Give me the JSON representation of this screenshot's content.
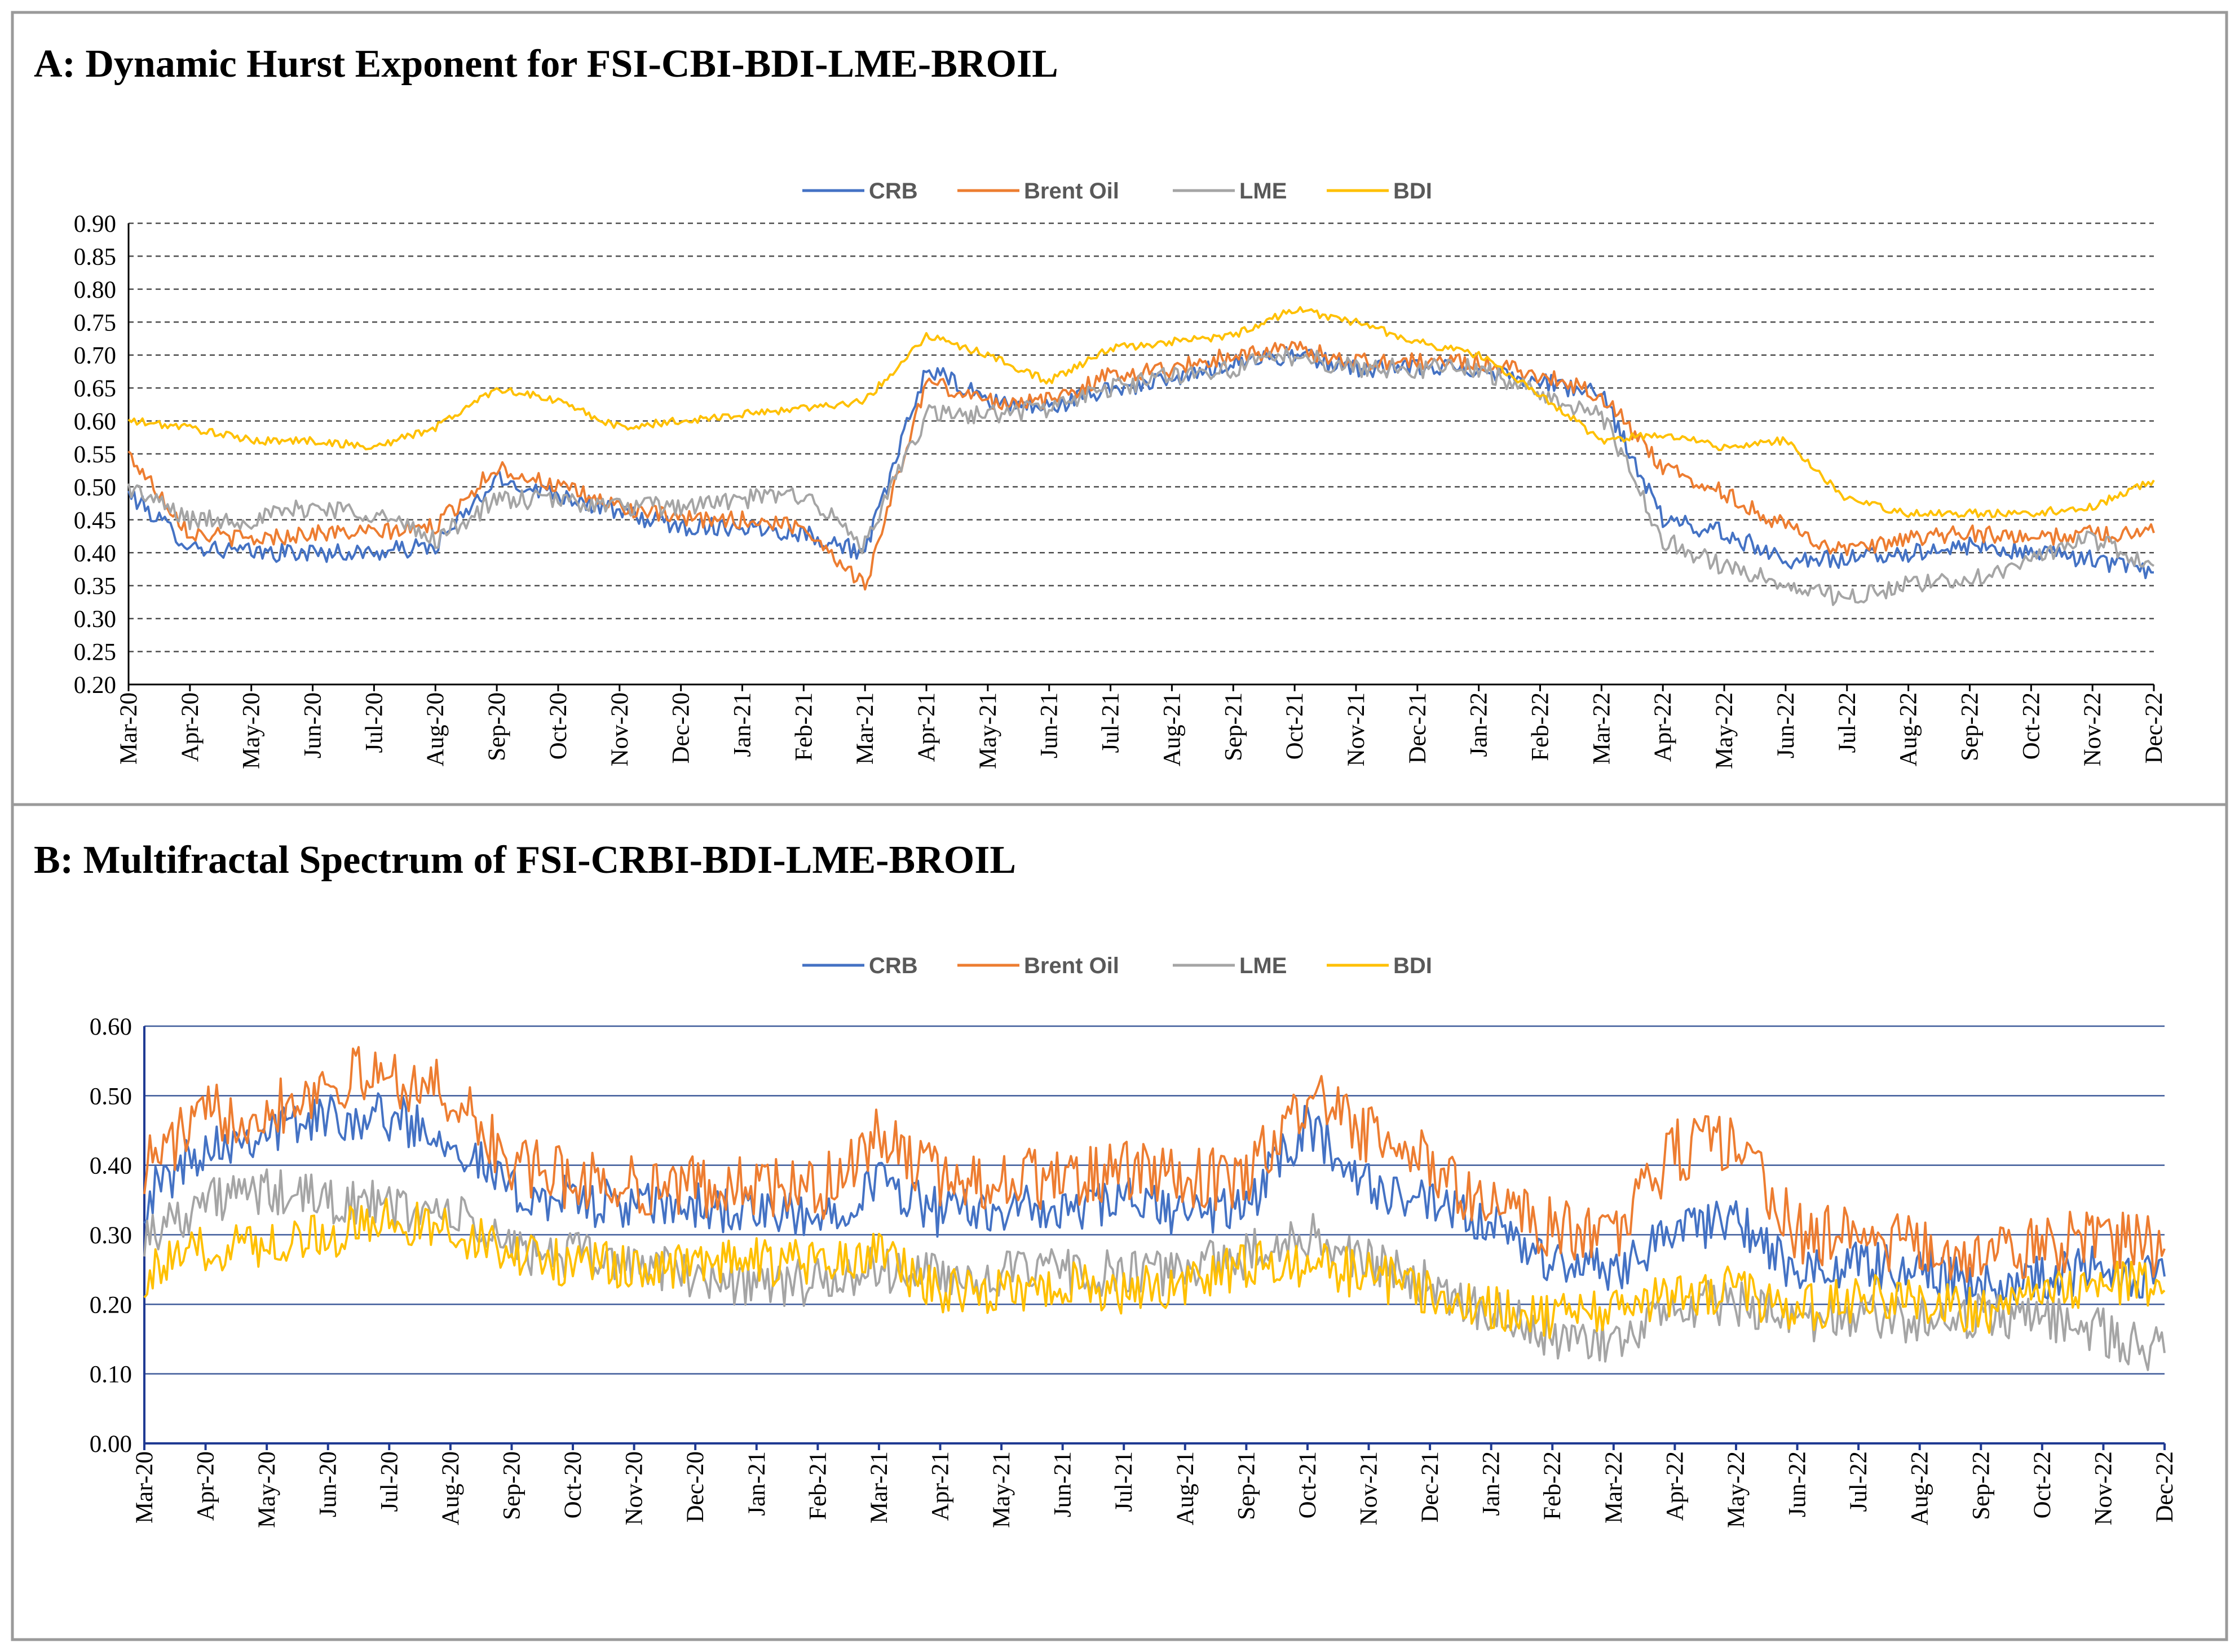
{
  "chart_data": [
    {
      "panel": "A",
      "type": "line",
      "title": "A: Dynamic Hurst Exponent for FSI-CBI-BDI-LME-BROIL",
      "xlabel": "",
      "ylabel": "",
      "ylim": [
        0.2,
        0.9
      ],
      "yticks": [
        "0.90",
        "0.85",
        "0.80",
        "0.75",
        "0.70",
        "0.65",
        "0.60",
        "0.55",
        "0.50",
        "0.45",
        "0.40",
        "0.35",
        "0.30",
        "0.25",
        "0.20"
      ],
      "grid": "dashed",
      "legend_position": "top-center",
      "categories": [
        "Mar-20",
        "Apr-20",
        "May-20",
        "Jun-20",
        "Jul-20",
        "Aug-20",
        "Sep-20",
        "Oct-20",
        "Nov-20",
        "Dec-20",
        "Jan-21",
        "Feb-21",
        "Mar-21",
        "Apr-21",
        "May-21",
        "Jun-21",
        "Jul-21",
        "Aug-21",
        "Sep-21",
        "Oct-21",
        "Nov-21",
        "Dec-21",
        "Jan-22",
        "Feb-22",
        "Mar-22",
        "Apr-22",
        "May-22",
        "Jun-22",
        "Jul-22",
        "Aug-22",
        "Sep-22",
        "Oct-22",
        "Nov-22",
        "Dec-22"
      ],
      "series": [
        {
          "name": "CRB",
          "color": "#4472c4",
          "values": [
            0.49,
            0.41,
            0.4,
            0.4,
            0.4,
            0.41,
            0.51,
            0.49,
            0.46,
            0.44,
            0.44,
            0.43,
            0.4,
            0.68,
            0.63,
            0.62,
            0.65,
            0.66,
            0.69,
            0.7,
            0.68,
            0.68,
            0.68,
            0.66,
            0.64,
            0.45,
            0.43,
            0.39,
            0.39,
            0.4,
            0.41,
            0.4,
            0.39,
            0.37
          ],
          "noise": 0.014
        },
        {
          "name": "Brent Oil",
          "color": "#ed7d31",
          "values": [
            0.55,
            0.43,
            0.42,
            0.43,
            0.43,
            0.44,
            0.53,
            0.5,
            0.47,
            0.45,
            0.45,
            0.44,
            0.35,
            0.66,
            0.63,
            0.63,
            0.67,
            0.68,
            0.7,
            0.71,
            0.69,
            0.69,
            0.69,
            0.67,
            0.64,
            0.53,
            0.49,
            0.44,
            0.4,
            0.42,
            0.43,
            0.42,
            0.43,
            0.43
          ],
          "noise": 0.013
        },
        {
          "name": "LME",
          "color": "#a5a5a5",
          "values": [
            0.5,
            0.45,
            0.45,
            0.47,
            0.46,
            0.42,
            0.48,
            0.48,
            0.47,
            0.47,
            0.48,
            0.49,
            0.41,
            0.61,
            0.61,
            0.62,
            0.65,
            0.67,
            0.68,
            0.7,
            0.68,
            0.68,
            0.68,
            0.64,
            0.61,
            0.42,
            0.38,
            0.35,
            0.33,
            0.35,
            0.36,
            0.39,
            0.42,
            0.38
          ],
          "noise": 0.015
        },
        {
          "name": "BDI",
          "color": "#ffc000",
          "values": [
            0.6,
            0.59,
            0.57,
            0.57,
            0.56,
            0.59,
            0.65,
            0.63,
            0.59,
            0.6,
            0.61,
            0.62,
            0.63,
            0.73,
            0.7,
            0.66,
            0.71,
            0.72,
            0.73,
            0.77,
            0.75,
            0.72,
            0.7,
            0.64,
            0.57,
            0.58,
            0.56,
            0.57,
            0.48,
            0.46,
            0.46,
            0.46,
            0.47,
            0.51
          ],
          "noise": 0.006
        }
      ]
    },
    {
      "panel": "B",
      "type": "line",
      "title": "B: Multifractal Spectrum of FSI-CRBI-BDI-LME-BROIL",
      "xlabel": "",
      "ylabel": "",
      "ylim": [
        0.0,
        0.6
      ],
      "yticks": [
        "0.60",
        "0.50",
        "0.40",
        "0.30",
        "0.20",
        "0.10",
        "0.00"
      ],
      "grid": "solid",
      "legend_position": "top-center",
      "categories": [
        "Mar-20",
        "Apr-20",
        "May-20",
        "Jun-20",
        "Jul-20",
        "Aug-20",
        "Sep-20",
        "Oct-20",
        "Nov-20",
        "Dec-20",
        "Jan-21",
        "Feb-21",
        "Mar-21",
        "Apr-21",
        "May-21",
        "Jun-21",
        "Jul-21",
        "Aug-21",
        "Sep-21",
        "Oct-21",
        "Nov-21",
        "Dec-21",
        "Jan-22",
        "Feb-22",
        "Mar-22",
        "Apr-22",
        "May-22",
        "Jun-22",
        "Jul-22",
        "Aug-22",
        "Sep-22",
        "Oct-22",
        "Nov-22",
        "Dec-22"
      ],
      "series": [
        {
          "name": "CRB",
          "color": "#4472c4",
          "values": [
            0.35,
            0.43,
            0.45,
            0.47,
            0.47,
            0.44,
            0.36,
            0.35,
            0.34,
            0.34,
            0.33,
            0.32,
            0.38,
            0.33,
            0.34,
            0.33,
            0.35,
            0.33,
            0.34,
            0.46,
            0.37,
            0.34,
            0.31,
            0.26,
            0.25,
            0.31,
            0.32,
            0.24,
            0.26,
            0.25,
            0.23,
            0.24,
            0.25,
            0.24
          ],
          "noise": 0.035
        },
        {
          "name": "Brent Oil",
          "color": "#ed7d31",
          "values": [
            0.4,
            0.47,
            0.48,
            0.52,
            0.53,
            0.5,
            0.4,
            0.38,
            0.37,
            0.37,
            0.37,
            0.36,
            0.44,
            0.38,
            0.38,
            0.38,
            0.39,
            0.38,
            0.38,
            0.5,
            0.44,
            0.4,
            0.34,
            0.31,
            0.3,
            0.42,
            0.44,
            0.3,
            0.3,
            0.28,
            0.27,
            0.28,
            0.3,
            0.28
          ],
          "noise": 0.045
        },
        {
          "name": "LME",
          "color": "#a5a5a5",
          "values": [
            0.3,
            0.35,
            0.36,
            0.35,
            0.34,
            0.33,
            0.28,
            0.27,
            0.26,
            0.24,
            0.23,
            0.23,
            0.25,
            0.24,
            0.24,
            0.25,
            0.24,
            0.25,
            0.27,
            0.3,
            0.26,
            0.23,
            0.19,
            0.15,
            0.14,
            0.2,
            0.2,
            0.17,
            0.18,
            0.18,
            0.18,
            0.18,
            0.16,
            0.13
          ],
          "noise": 0.035
        },
        {
          "name": "BDI",
          "color": "#ffc000",
          "values": [
            0.24,
            0.28,
            0.29,
            0.3,
            0.32,
            0.31,
            0.27,
            0.26,
            0.25,
            0.26,
            0.26,
            0.26,
            0.27,
            0.22,
            0.22,
            0.23,
            0.22,
            0.23,
            0.26,
            0.26,
            0.24,
            0.22,
            0.2,
            0.18,
            0.19,
            0.22,
            0.22,
            0.19,
            0.21,
            0.2,
            0.19,
            0.21,
            0.24,
            0.22
          ],
          "noise": 0.035
        }
      ]
    }
  ]
}
